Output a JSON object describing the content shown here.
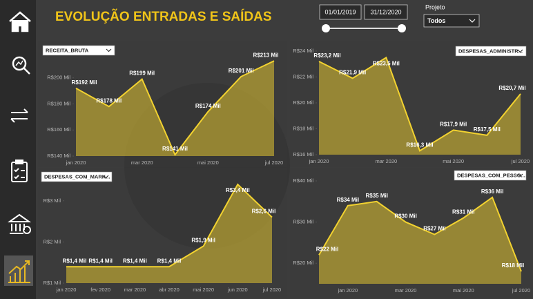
{
  "header": {
    "title": "EVOLUÇÃO ENTRADAS E SAÍDAS"
  },
  "filters": {
    "date_start": "01/01/2019",
    "date_end": "31/12/2020",
    "project_label": "Projeto",
    "project_value": "Todos"
  },
  "chart_data": [
    {
      "type": "area",
      "title": "RECEITA_BRUTA",
      "color": "#f2d230",
      "categories": [
        "jan 2020",
        null,
        "mar 2020",
        null,
        "mai 2020",
        null,
        "jul 2020"
      ],
      "values": [
        192,
        178,
        199,
        141,
        174,
        201,
        213
      ],
      "value_labels": [
        "R$192 Mil",
        "R$178 Mil",
        "R$199 Mil",
        "R$141 Mil",
        "R$174 Mil",
        "R$201 Mil",
        "R$213 Mil"
      ],
      "ylim": [
        140,
        220
      ],
      "yticks": [
        {
          "value": 140,
          "label": "R$140 Mil"
        },
        {
          "value": 160,
          "label": "R$160 Mil"
        },
        {
          "value": 180,
          "label": "R$180 Mil"
        },
        {
          "value": 200,
          "label": "R$200 Mil"
        }
      ]
    },
    {
      "type": "area",
      "title": "DESPESAS_ADMINISTR...",
      "color": "#f2d230",
      "categories": [
        "jan 2020",
        null,
        "mar 2020",
        null,
        "mai 2020",
        null,
        "jul 2020"
      ],
      "values": [
        23.2,
        21.9,
        23.5,
        16.3,
        17.9,
        17.5,
        20.7
      ],
      "value_labels": [
        "R$23,2 Mil",
        "R$21,9 Mil",
        "R$23,5 Mil",
        "R$16,3 Mil",
        "R$17,9 Mil",
        "R$17,5 Mil",
        "R$20,7 Mil"
      ],
      "ylim": [
        16,
        24
      ],
      "yticks": [
        {
          "value": 16,
          "label": "R$16 Mil"
        },
        {
          "value": 18,
          "label": "R$18 Mil"
        },
        {
          "value": 20,
          "label": "R$20 Mil"
        },
        {
          "value": 22,
          "label": "R$22 Mil"
        },
        {
          "value": 24,
          "label": "R$24 Mil"
        }
      ]
    },
    {
      "type": "area",
      "title": "DESPESAS_COM_MARK...",
      "color": "#f2d230",
      "categories": [
        "jan 2020",
        "fev 2020",
        "mar 2020",
        "abr 2020",
        "mai 2020",
        "jun 2020",
        "jul 2020"
      ],
      "values": [
        1.4,
        1.4,
        1.4,
        1.4,
        1.9,
        3.4,
        2.6
      ],
      "value_labels": [
        "R$1,4 Mil",
        "R$1,4 Mil",
        "R$1,4 Mil",
        "R$1,4 Mil",
        "R$1,9 Mil",
        "R$3,4 Mil",
        "R$2,6 Mil"
      ],
      "ylim": [
        1,
        3.5
      ],
      "yticks": [
        {
          "value": 1,
          "label": "R$1 Mil"
        },
        {
          "value": 2,
          "label": "R$2 Mil"
        },
        {
          "value": 3,
          "label": "R$3 Mil"
        }
      ]
    },
    {
      "type": "area",
      "title": "DESPESAS_COM_PESSO...",
      "color": "#f2d230",
      "categories": [
        null,
        "jan 2020",
        null,
        "mar 2020",
        null,
        "mai 2020",
        null,
        "jul 2020"
      ],
      "values": [
        22,
        34,
        35,
        30,
        27,
        31,
        36,
        18
      ],
      "value_labels": [
        "R$22 Mil",
        "R$34 Mil",
        "R$35 Mil",
        "R$30 Mil",
        "R$27 Mil",
        "R$31 Mil",
        "R$36 Mil",
        "R$18 Mil"
      ],
      "ylim": [
        15,
        40
      ],
      "yticks": [
        {
          "value": 20,
          "label": "R$20 Mil"
        },
        {
          "value": 30,
          "label": "R$30 Mil"
        },
        {
          "value": 40,
          "label": "R$40 Mil"
        }
      ]
    }
  ]
}
